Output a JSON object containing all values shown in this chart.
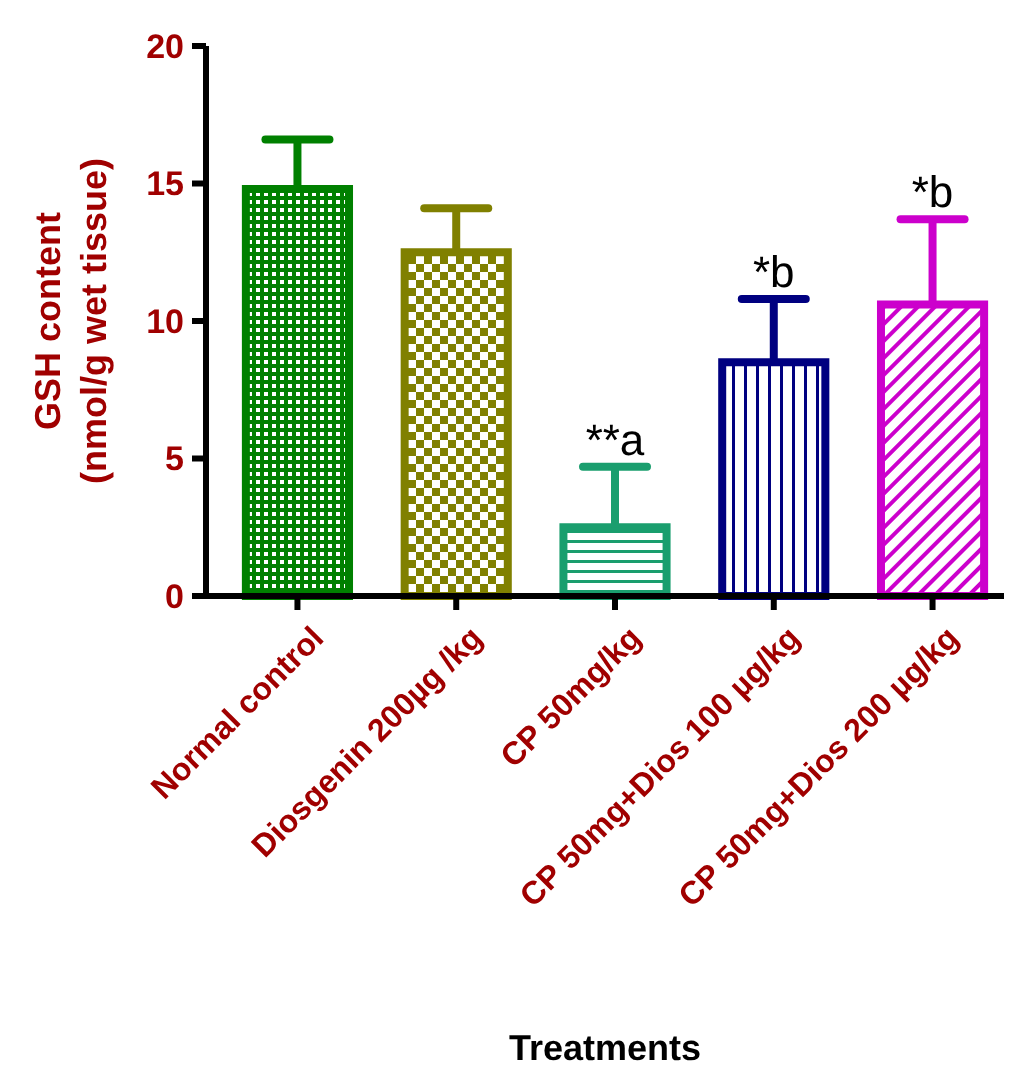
{
  "chart_data": {
    "type": "bar",
    "xlabel": "Treatments",
    "ylabel": "GSH content\n(nmol/g wet tissue)",
    "categories": [
      "Normal control",
      "Diosgenin 200µg /kg",
      "CP 50mg/kg",
      "CP 50mg+Dios 100 µg/kg",
      "CP 50mg+Dios 200 µg/kg"
    ],
    "values": [
      14.8,
      12.5,
      2.5,
      8.5,
      10.6
    ],
    "errors": [
      [
        14.8,
        16.6
      ],
      [
        12.5,
        14.1
      ],
      [
        2.5,
        4.7
      ],
      [
        8.5,
        10.8
      ],
      [
        10.6,
        13.7
      ]
    ],
    "colors": [
      "#008000",
      "#808000",
      "#1a9e6e",
      "#000080",
      "#cc00cc"
    ],
    "ylim": [
      0,
      20
    ],
    "yticks": [
      0,
      5,
      10,
      15,
      20
    ],
    "grid": false,
    "annotations": [
      {
        "text": "**a",
        "x": "CP 50mg/kg",
        "y": 4.7
      },
      {
        "text": "*b",
        "x": "CP 50mg+Dios 100 µg/kg",
        "y": 10.8
      },
      {
        "text": "*b",
        "x": "CP 50mg+Dios 200 µg/kg",
        "y": 13.7
      }
    ]
  }
}
